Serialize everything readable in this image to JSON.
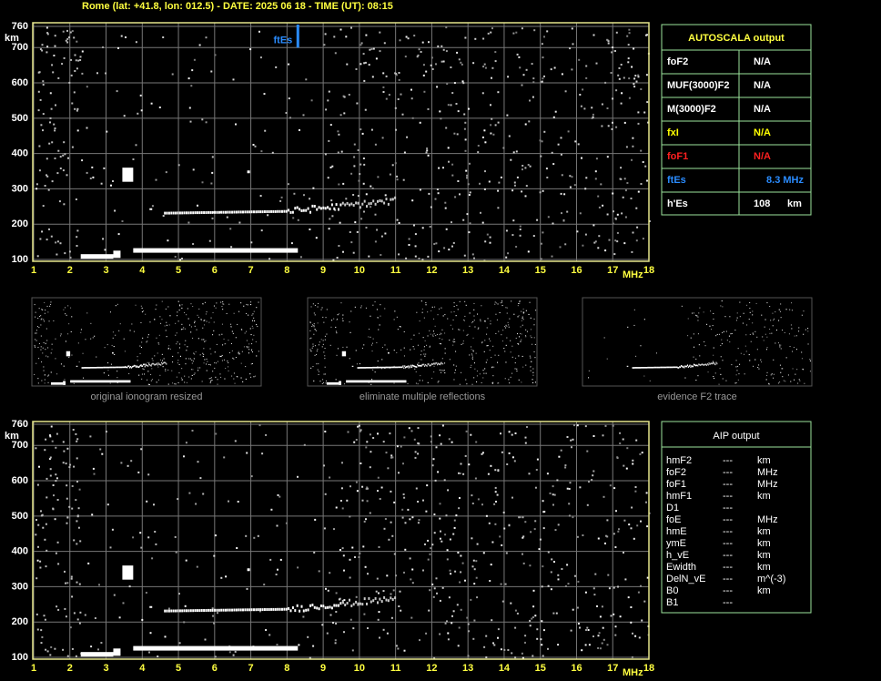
{
  "header": "Rome (lat: +41.8, lon: 012.5) - DATE: 2025 06 18 - TIME (UT): 08:15",
  "axes": {
    "y_unit": "km",
    "x_unit": "MHz",
    "y_ticks": [
      100,
      200,
      300,
      400,
      500,
      600,
      700,
      760
    ],
    "x_ticks": [
      1,
      2,
      3,
      4,
      5,
      6,
      7,
      8,
      9,
      10,
      11,
      12,
      13,
      14,
      15,
      16,
      17,
      18
    ]
  },
  "top_plot": {
    "marker_label": "ftEs"
  },
  "autoscala": {
    "title": "AUTOSCALA output",
    "rows": [
      {
        "label": "foF2",
        "value": "N/A",
        "color": "#ffffff"
      },
      {
        "label": "MUF(3000)F2",
        "value": "N/A",
        "color": "#ffffff"
      },
      {
        "label": "M(3000)F2",
        "value": "N/A",
        "color": "#ffffff"
      },
      {
        "label": "fxI",
        "value": "N/A",
        "color": "#ffff00"
      },
      {
        "label": "foF1",
        "value": "N/A",
        "color": "#ff2020"
      },
      {
        "label": "ftEs",
        "value": "8.3 MHz",
        "color": "#2a8cff"
      },
      {
        "label": "h'Es",
        "value": "108",
        "unit": "km",
        "color": "#ffffff"
      }
    ]
  },
  "thumbnails": [
    "original ionogram resized",
    "eliminate multiple reflections",
    "evidence F2 trace"
  ],
  "aip": {
    "title": "AIP output",
    "rows": [
      [
        "hmF2",
        "---",
        "km"
      ],
      [
        "foF2",
        "---",
        "MHz"
      ],
      [
        "foF1",
        "---",
        "MHz"
      ],
      [
        "hmF1",
        "---",
        "km"
      ],
      [
        "D1",
        "---"
      ],
      [
        "foE",
        "---",
        "MHz"
      ],
      [
        "hmE",
        "---",
        "km"
      ],
      [
        "ymE",
        "---",
        "km"
      ],
      [
        "h_vE",
        "---",
        "km"
      ],
      [
        "Ewidth",
        "---",
        "km"
      ],
      [
        "DelN_vE",
        "---",
        "m^(-3)"
      ],
      [
        "B0",
        "---",
        "km"
      ],
      [
        "B1",
        "---"
      ]
    ]
  }
}
